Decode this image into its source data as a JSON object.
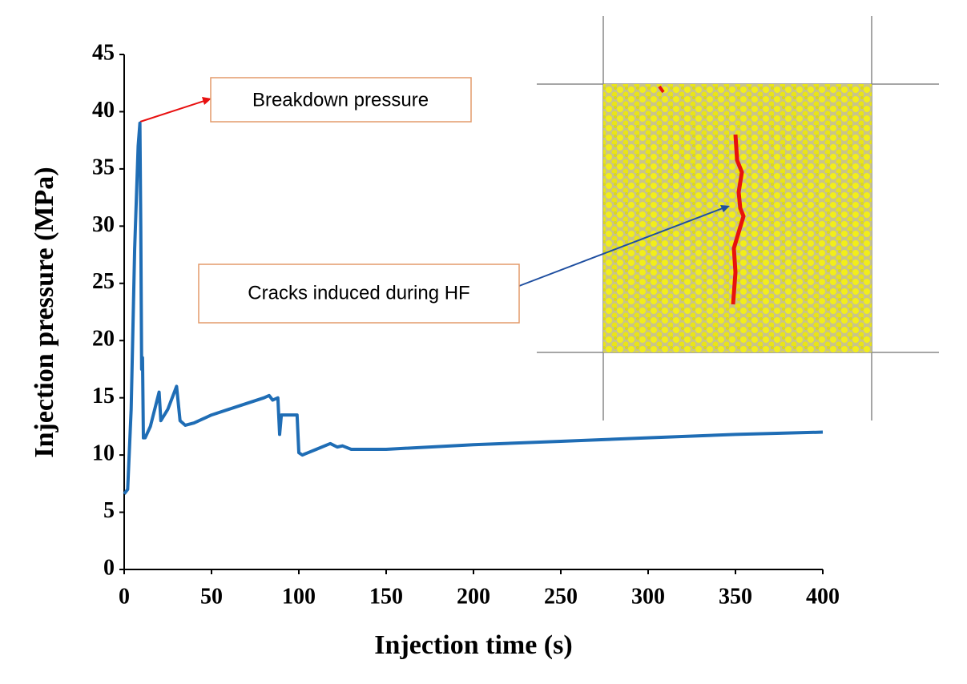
{
  "chart_data": {
    "type": "line",
    "x_label": "Injection time (s)",
    "y_label": "Injection pressure (MPa)",
    "annotations": [
      "Breakdown pressure",
      "Cracks induced during HF"
    ],
    "x": [
      0,
      2,
      4,
      6,
      8,
      9,
      9.5,
      10,
      10.5,
      11,
      12,
      15,
      20,
      21,
      25,
      30,
      32,
      35,
      40,
      50,
      60,
      70,
      80,
      83,
      85,
      88,
      89,
      90,
      95,
      99,
      100,
      102,
      110,
      118,
      122,
      125,
      130,
      140,
      150,
      200,
      250,
      300,
      350,
      400
    ],
    "series": [
      {
        "color": "#1f6db5",
        "values": [
          6.6,
          7,
          14,
          28,
          37,
          39,
          30,
          17.5,
          18.5,
          11.5,
          11.5,
          12.5,
          15.5,
          13,
          14,
          16,
          13,
          12.6,
          12.8,
          13.5,
          14,
          14.5,
          15,
          15.2,
          14.8,
          15,
          11.8,
          13.5,
          13.5,
          13.5,
          10.2,
          10,
          10.5,
          11,
          10.7,
          10.8,
          10.5,
          10.5,
          10.5,
          10.9,
          11.2,
          11.5,
          11.8,
          12
        ]
      }
    ],
    "xlim": [
      0,
      400
    ],
    "xticks": [
      0,
      50,
      100,
      150,
      200,
      250,
      300,
      350,
      400
    ],
    "ylim": [
      0,
      45
    ],
    "yticks": [
      0,
      5,
      10,
      15,
      20,
      25,
      30,
      35,
      40,
      45
    ],
    "grid": false
  }
}
